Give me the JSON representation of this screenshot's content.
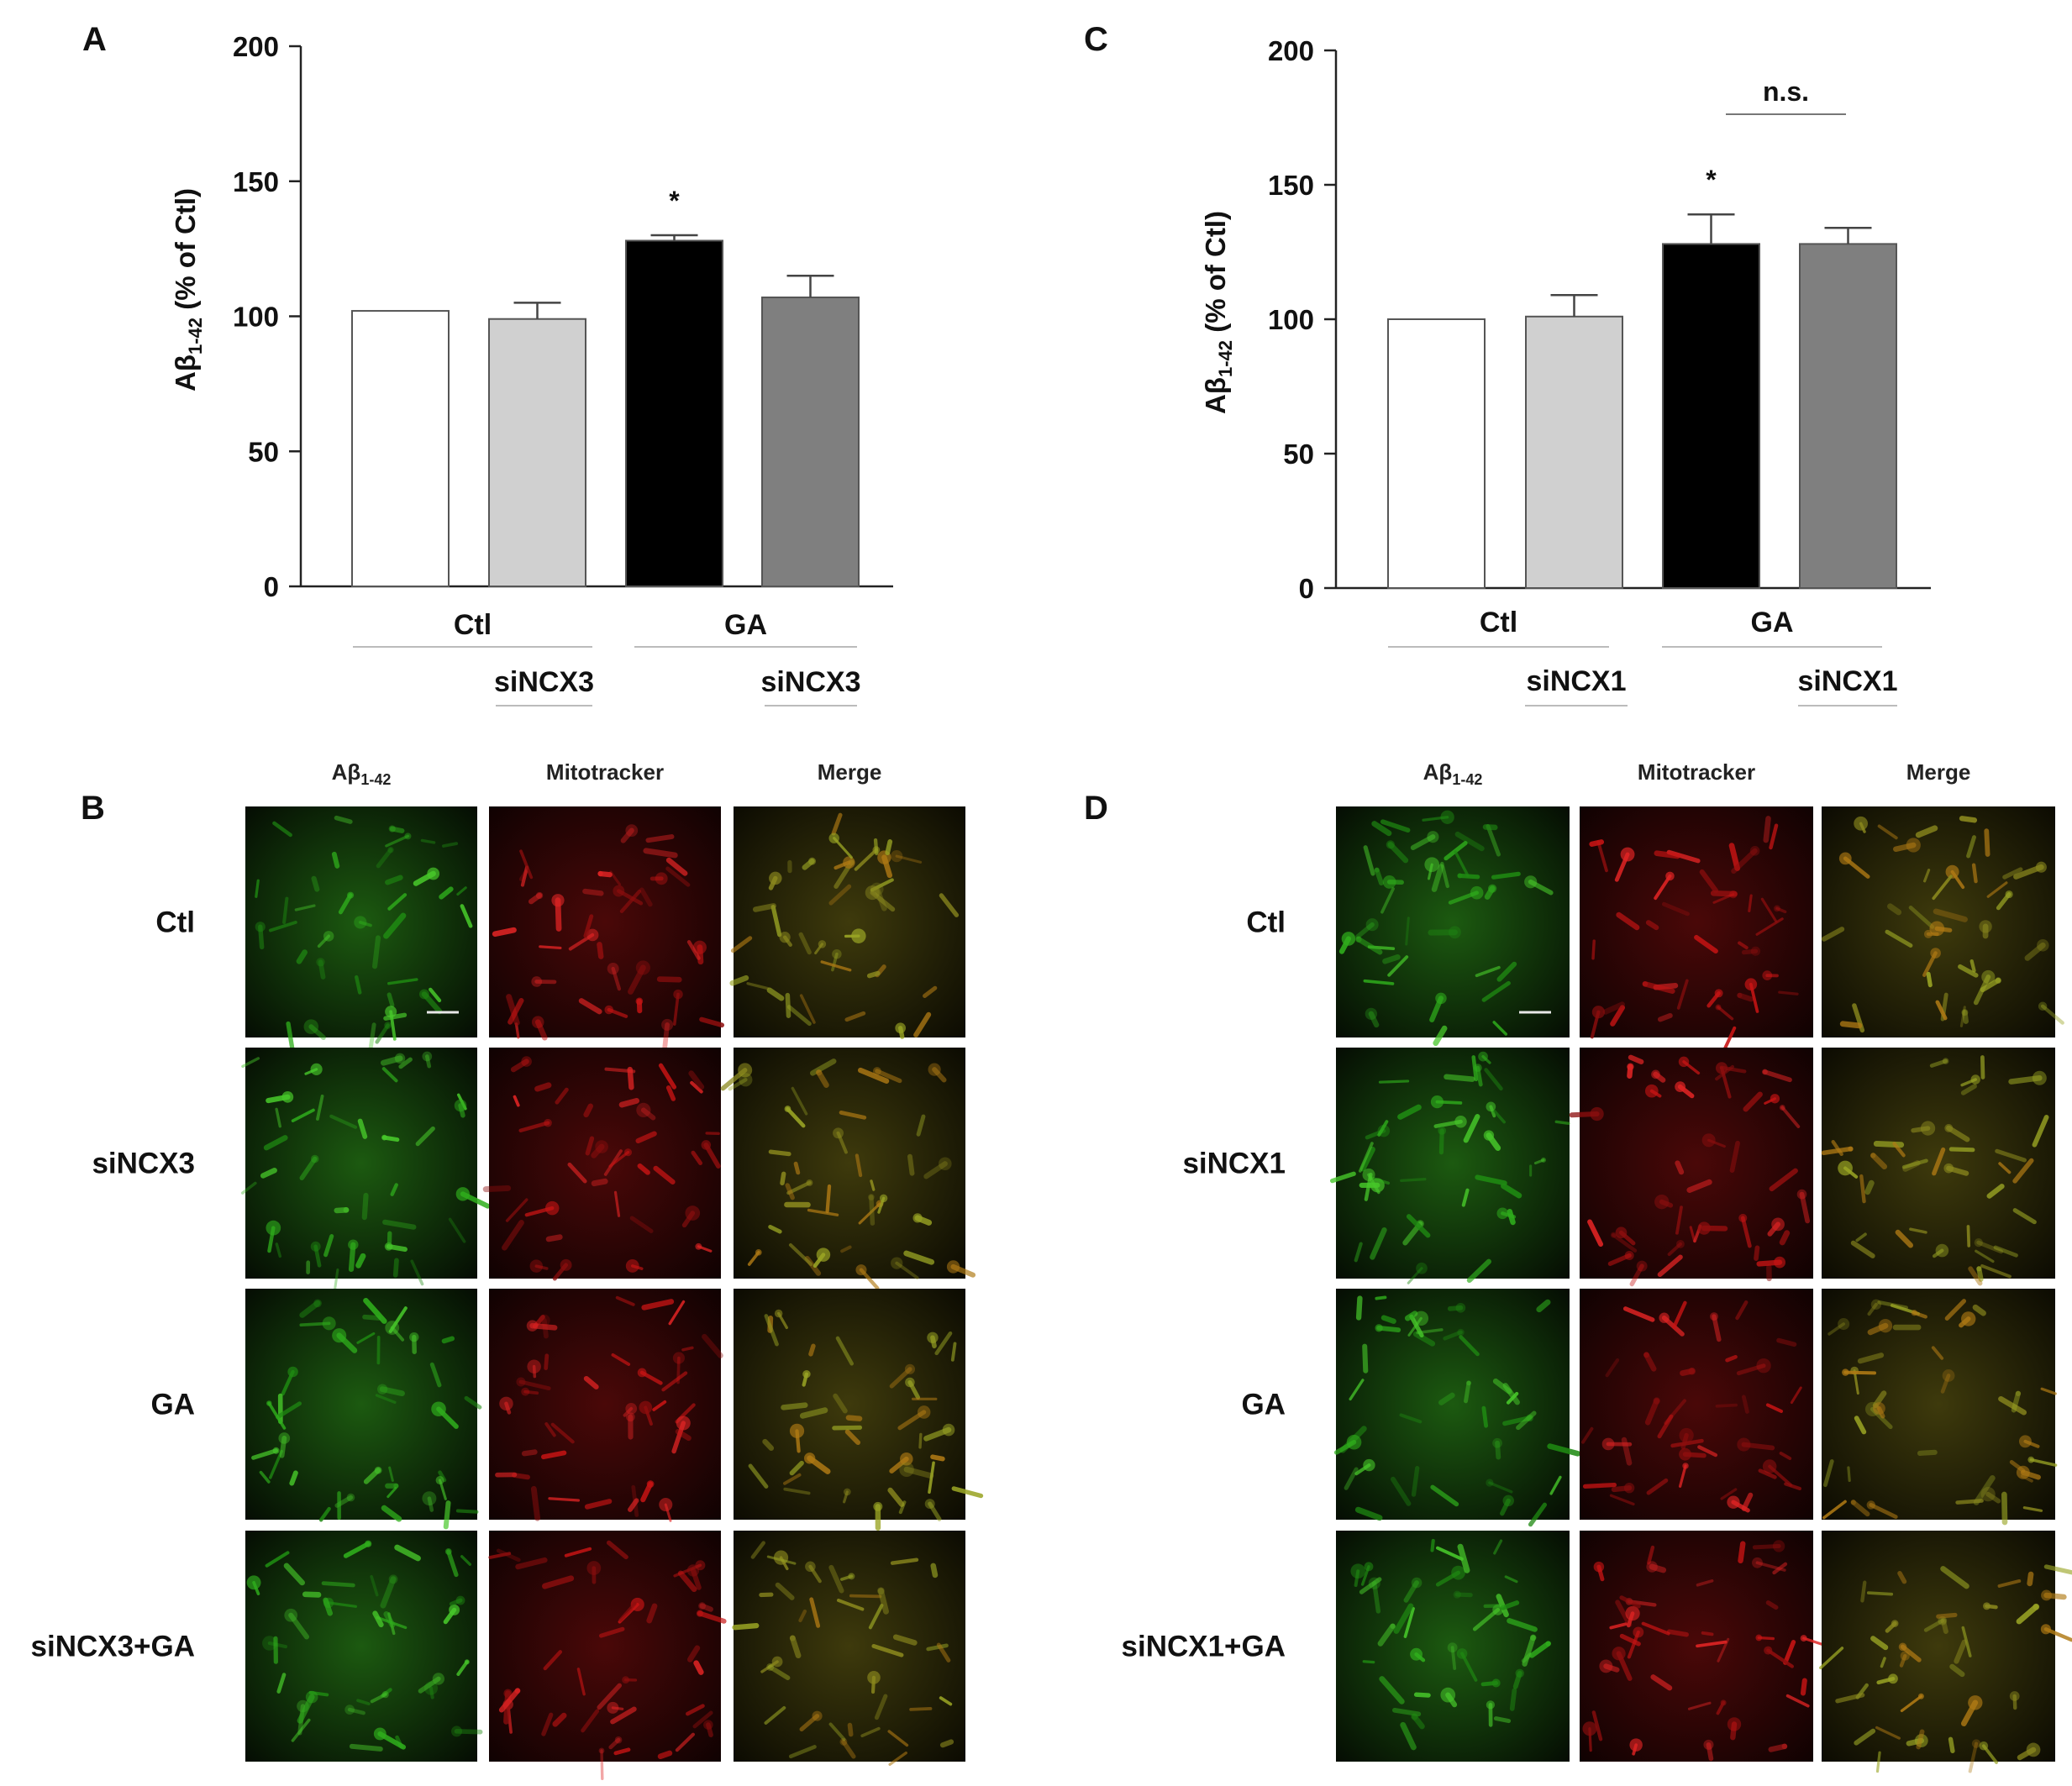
{
  "panels": {
    "A": "A",
    "B": "B",
    "C": "C",
    "D": "D"
  },
  "ylabel_main": "Aβ",
  "ylabel_sub": "1-42",
  "ylabel_rest": " (% of Ctl)",
  "chart_data": [
    {
      "type": "bar",
      "panel": "A",
      "categories": [
        "Ctl",
        "siNCX3",
        "GA",
        "siNCX3+GA"
      ],
      "values": [
        102,
        99,
        128,
        107
      ],
      "errors": [
        0,
        6,
        2,
        8
      ],
      "colors": [
        "#ffffff",
        "#d0d0d0",
        "#000000",
        "#7f7f7f"
      ],
      "yticks": [
        0,
        50,
        100,
        150,
        200
      ],
      "ylim": [
        0,
        200
      ],
      "group_labels": [
        "Ctl",
        "GA"
      ],
      "sub_labels": [
        "siNCX3",
        "siNCX3"
      ],
      "annotations": {
        "star": "*",
        "star_index": 2
      }
    },
    {
      "type": "bar",
      "panel": "C",
      "categories": [
        "Ctl",
        "siNCX1",
        "GA",
        "siNCX1+GA"
      ],
      "values": [
        100,
        101,
        128,
        128
      ],
      "errors": [
        0,
        8,
        11,
        6
      ],
      "colors": [
        "#ffffff",
        "#d0d0d0",
        "#000000",
        "#7f7f7f"
      ],
      "yticks": [
        0,
        50,
        100,
        150,
        200
      ],
      "ylim": [
        0,
        200
      ],
      "group_labels": [
        "Ctl",
        "GA"
      ],
      "sub_labels": [
        "siNCX1",
        "siNCX1"
      ],
      "annotations": {
        "star": "*",
        "star_index": 2,
        "ns": "n.s."
      }
    }
  ],
  "micrographs": {
    "B": {
      "columns": [
        "Aβ",
        "Mitotracker",
        "Merge"
      ],
      "column_sub": "1-42",
      "rows": [
        "Ctl",
        "siNCX3",
        "GA",
        "siNCX3+GA"
      ]
    },
    "D": {
      "columns": [
        "Aβ",
        "Mitotracker",
        "Merge"
      ],
      "column_sub": "1-42",
      "rows": [
        "Ctl",
        "siNCX1",
        "GA",
        "siNCX1+GA"
      ]
    }
  },
  "colors": {
    "green_channel": "#2fae1c",
    "red_channel": "#c81414",
    "merge_channel": "#8c8a1e"
  }
}
